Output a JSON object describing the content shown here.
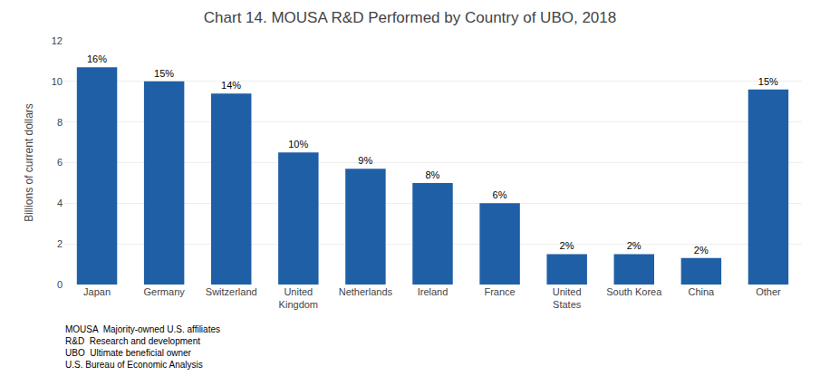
{
  "chart_data": {
    "type": "bar",
    "title": "Chart 14. MOUSA R&D Performed by Country of UBO, 2018",
    "ylabel": "Billions of current dollars",
    "categories": [
      "Japan",
      "Germany",
      "Switzerland",
      "United\nKingdom",
      "Netherlands",
      "Ireland",
      "France",
      "United\nStates",
      "South Korea",
      "China",
      "Other"
    ],
    "values": [
      10.7,
      10.0,
      9.4,
      6.5,
      5.7,
      5.0,
      4.0,
      1.5,
      1.5,
      1.3,
      9.6
    ],
    "percentage_labels": [
      "16%",
      "15%",
      "14%",
      "10%",
      "9%",
      "8%",
      "6%",
      "2%",
      "2%",
      "2%",
      "15%"
    ],
    "color": "#1f5fa6",
    "ylim": [
      0,
      12
    ],
    "yticks": [
      0,
      2,
      4,
      6,
      8,
      10,
      12
    ],
    "grid": true,
    "annotations": [
      "MOUSA  Majority-owned U.S. affiliates",
      "R&D  Research and development",
      "UBO  Ultimate beneficial owner",
      "U.S. Bureau of Economic Analysis"
    ]
  }
}
